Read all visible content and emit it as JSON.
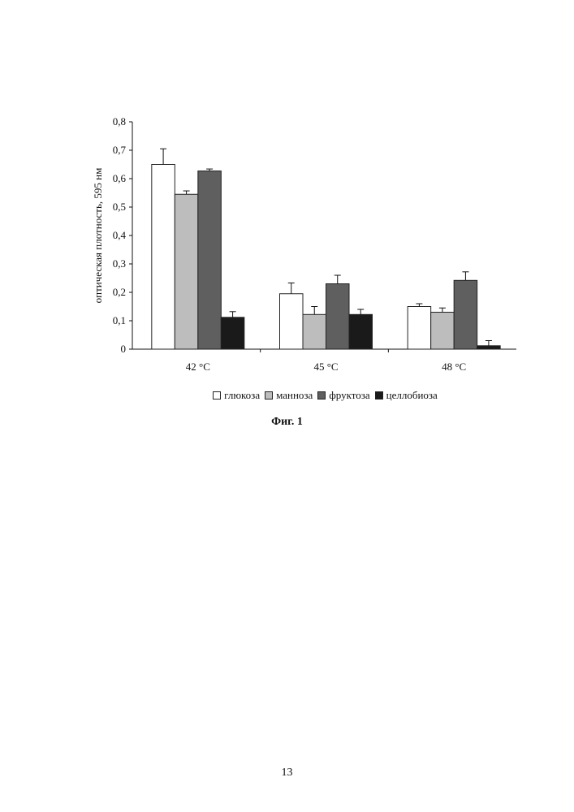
{
  "chart_data": {
    "type": "bar",
    "ylabel": "оптическая плотность, 595 нм",
    "xlabel": "",
    "ylim": [
      0,
      0.8
    ],
    "yticks": [
      0,
      0.1,
      0.2,
      0.3,
      0.4,
      0.5,
      0.6,
      0.7,
      0.8
    ],
    "ytick_labels": [
      "0",
      "0,1",
      "0,2",
      "0,3",
      "0,4",
      "0,5",
      "0,6",
      "0,7",
      "0,8"
    ],
    "categories": [
      "42 °С",
      "45 °С",
      "48 °С"
    ],
    "series": [
      {
        "name": "глюкоза",
        "color": "#ffffff",
        "values": [
          0.65,
          0.195,
          0.15
        ],
        "errors": [
          0.055,
          0.038,
          0.01
        ]
      },
      {
        "name": "манноза",
        "color": "#bdbdbd",
        "values": [
          0.545,
          0.122,
          0.13
        ],
        "errors": [
          0.012,
          0.028,
          0.015
        ]
      },
      {
        "name": "фруктоза",
        "color": "#5f5f5f",
        "values": [
          0.627,
          0.23,
          0.242
        ],
        "errors": [
          0.007,
          0.03,
          0.03
        ]
      },
      {
        "name": "целлобиоза",
        "color": "#1a1a1a",
        "values": [
          0.112,
          0.122,
          0.012
        ],
        "errors": [
          0.02,
          0.018,
          0.018
        ]
      }
    ],
    "legend_position": "bottom",
    "grid": false
  },
  "caption": "Фиг. 1",
  "page_number": "13"
}
